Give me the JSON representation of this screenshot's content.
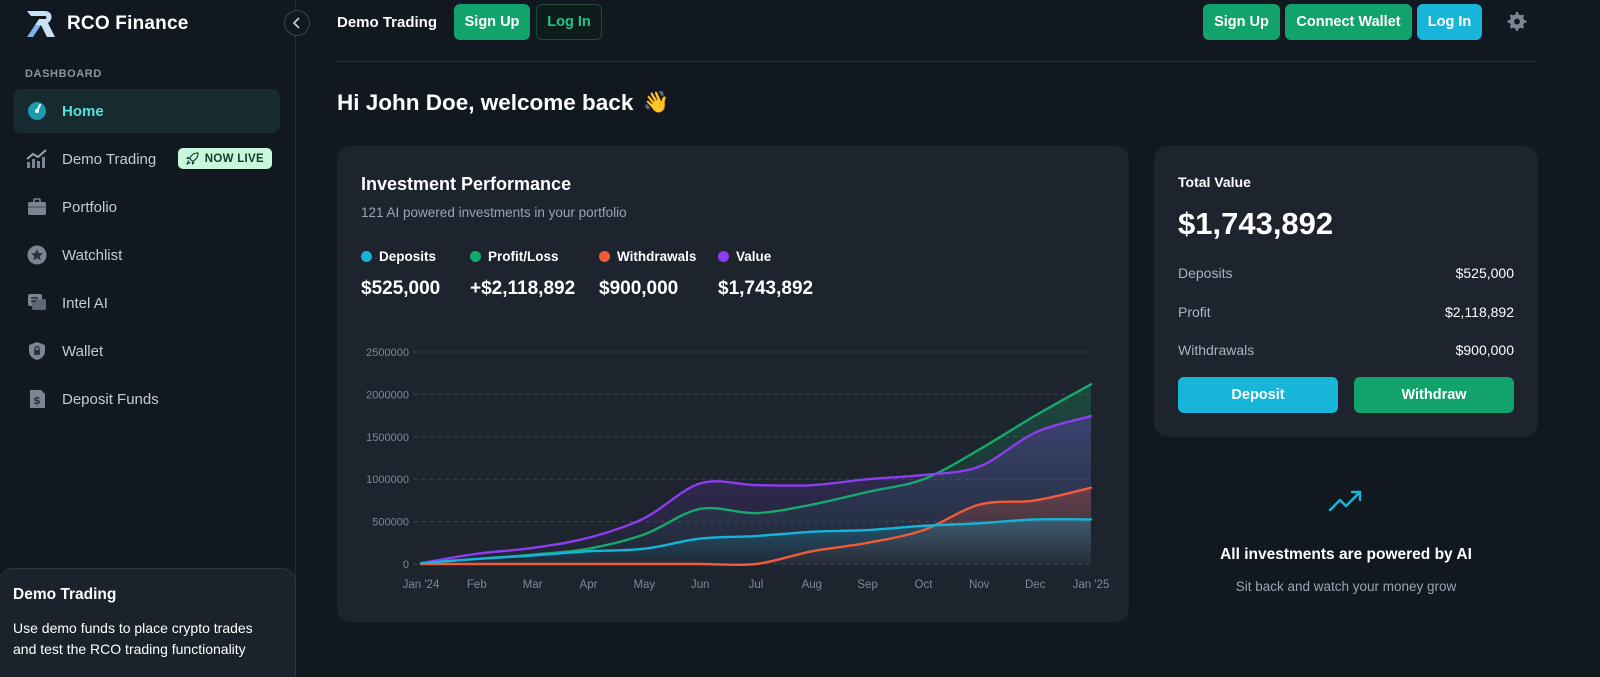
{
  "app": {
    "name": "RCO Finance"
  },
  "sidebar": {
    "section_label": "DASHBOARD",
    "items": [
      {
        "label": "Home",
        "icon": "speedometer-icon",
        "active": true
      },
      {
        "label": "Demo Trading",
        "icon": "trend-bars-icon",
        "badge": "NOW LIVE"
      },
      {
        "label": "Portfolio",
        "icon": "briefcase-icon"
      },
      {
        "label": "Watchlist",
        "icon": "star-icon"
      },
      {
        "label": "Intel AI",
        "icon": "chat-icon"
      },
      {
        "label": "Wallet",
        "icon": "shield-lock-icon"
      },
      {
        "label": "Deposit Funds",
        "icon": "dollar-receipt-icon"
      }
    ],
    "demo_card": {
      "title": "Demo Trading",
      "text": "Use demo funds to place crypto trades and test the RCO trading functionality"
    }
  },
  "topbar": {
    "title": "Demo Trading",
    "left_signup": "Sign Up",
    "left_login": "Log In",
    "right_signup": "Sign Up",
    "connect_wallet": "Connect Wallet",
    "right_login": "Log In"
  },
  "welcome": {
    "text": "Hi John Doe, welcome back",
    "emoji": "👋"
  },
  "performance": {
    "title": "Investment Performance",
    "subtitle": "121 AI powered investments in your portfolio",
    "legend": [
      {
        "name": "Deposits",
        "value": "$525,000",
        "color": "#16b4d9"
      },
      {
        "name": "Profit/Loss",
        "value": "+$2,118,892",
        "color": "#16a86c"
      },
      {
        "name": "Withdrawals",
        "value": "$900,000",
        "color": "#f25a3a"
      },
      {
        "name": "Value",
        "value": "$1,743,892",
        "color": "#8d3cf0"
      }
    ]
  },
  "chart_data": {
    "type": "area",
    "x": [
      "Jan '24",
      "Feb",
      "Mar",
      "Apr",
      "May",
      "Jun",
      "Jul",
      "Aug",
      "Sep",
      "Oct",
      "Nov",
      "Dec",
      "Jan '25"
    ],
    "y_ticks": [
      0,
      500000,
      1000000,
      1500000,
      2000000,
      2500000
    ],
    "ylim": [
      0,
      2500000
    ],
    "grid": true,
    "series": [
      {
        "name": "Deposits",
        "color": "#16b4d9",
        "values": [
          10000,
          60000,
          100000,
          150000,
          180000,
          300000,
          330000,
          380000,
          400000,
          450000,
          480000,
          525000,
          525000
        ]
      },
      {
        "name": "Profit/Loss",
        "color": "#16a86c",
        "values": [
          10000,
          60000,
          110000,
          180000,
          350000,
          650000,
          600000,
          700000,
          850000,
          1000000,
          1350000,
          1750000,
          2118892
        ]
      },
      {
        "name": "Withdrawals",
        "color": "#f25a3a",
        "values": [
          0,
          0,
          0,
          0,
          0,
          0,
          0,
          150000,
          250000,
          400000,
          700000,
          750000,
          900000
        ]
      },
      {
        "name": "Value",
        "color": "#8d3cf0",
        "values": [
          10000,
          120000,
          190000,
          310000,
          540000,
          950000,
          930000,
          930000,
          1000000,
          1050000,
          1150000,
          1550000,
          1743892
        ]
      }
    ]
  },
  "total": {
    "label": "Total Value",
    "value": "$1,743,892",
    "rows": [
      {
        "label": "Deposits",
        "value": "$525,000"
      },
      {
        "label": "Profit",
        "value": "$2,118,892"
      },
      {
        "label": "Withdrawals",
        "value": "$900,000"
      }
    ],
    "deposit_button": "Deposit",
    "withdraw_button": "Withdraw"
  },
  "ai_info": {
    "icon": "trend-up-icon",
    "title": "All investments are powered by AI",
    "subtitle": "Sit back and watch your money grow"
  },
  "colors": {
    "green": "#12a36d",
    "cyan": "#17b6d8",
    "active_text": "#55e3d5"
  }
}
